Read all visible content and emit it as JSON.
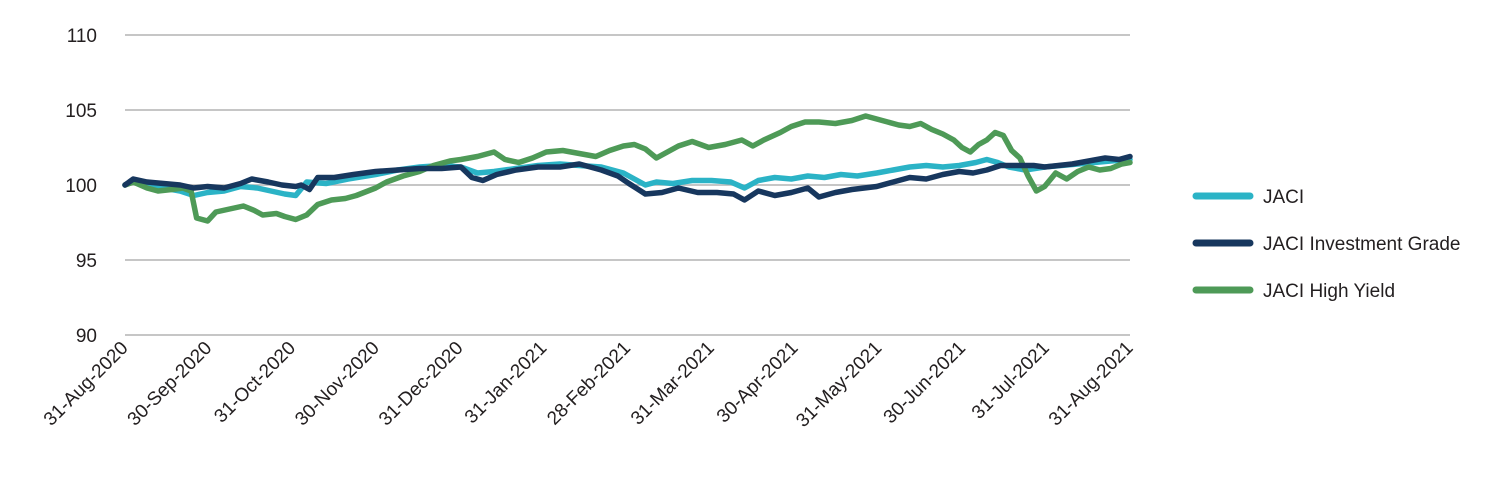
{
  "chart_data": {
    "type": "line",
    "title": "",
    "xlabel": "",
    "ylabel": "",
    "ylim": [
      90,
      110
    ],
    "yticks": [
      90,
      95,
      100,
      105,
      110
    ],
    "grid": "horizontal",
    "legend_position": "right",
    "x_tick_labels": [
      "31-Aug-2020",
      "30-Sep-2020",
      "31-Oct-2020",
      "30-Nov-2020",
      "31-Dec-2020",
      "31-Jan-2021",
      "28-Feb-2021",
      "31-Mar-2021",
      "30-Apr-2021",
      "31-May-2021",
      "30-Jun-2021",
      "31-Jul-2021",
      "31-Aug-2021"
    ],
    "series": [
      {
        "name": "JACI",
        "color": "#2bb3c6",
        "points": [
          [
            "2020-08-31",
            100.0
          ],
          [
            "2020-09-03",
            100.3
          ],
          [
            "2020-09-08",
            100.1
          ],
          [
            "2020-09-14",
            99.8
          ],
          [
            "2020-09-20",
            99.6
          ],
          [
            "2020-09-25",
            99.3
          ],
          [
            "2020-09-30",
            99.5
          ],
          [
            "2020-10-06",
            99.6
          ],
          [
            "2020-10-12",
            99.9
          ],
          [
            "2020-10-18",
            99.8
          ],
          [
            "2020-10-23",
            99.6
          ],
          [
            "2020-10-28",
            99.4
          ],
          [
            "2020-11-01",
            99.3
          ],
          [
            "2020-11-05",
            100.2
          ],
          [
            "2020-11-12",
            100.1
          ],
          [
            "2020-11-20",
            100.4
          ],
          [
            "2020-11-30",
            100.7
          ],
          [
            "2020-12-08",
            101.0
          ],
          [
            "2020-12-16",
            101.2
          ],
          [
            "2020-12-24",
            101.3
          ],
          [
            "2020-12-31",
            101.2
          ],
          [
            "2021-01-06",
            100.8
          ],
          [
            "2021-01-12",
            100.9
          ],
          [
            "2021-01-20",
            101.1
          ],
          [
            "2021-01-28",
            101.3
          ],
          [
            "2021-02-05",
            101.4
          ],
          [
            "2021-02-12",
            101.3
          ],
          [
            "2021-02-20",
            101.2
          ],
          [
            "2021-02-28",
            100.8
          ],
          [
            "2021-03-04",
            100.4
          ],
          [
            "2021-03-08",
            100.0
          ],
          [
            "2021-03-12",
            100.2
          ],
          [
            "2021-03-18",
            100.1
          ],
          [
            "2021-03-25",
            100.3
          ],
          [
            "2021-04-01",
            100.3
          ],
          [
            "2021-04-08",
            100.2
          ],
          [
            "2021-04-13",
            99.8
          ],
          [
            "2021-04-18",
            100.3
          ],
          [
            "2021-04-24",
            100.5
          ],
          [
            "2021-04-30",
            100.4
          ],
          [
            "2021-05-06",
            100.6
          ],
          [
            "2021-05-12",
            100.5
          ],
          [
            "2021-05-18",
            100.7
          ],
          [
            "2021-05-24",
            100.6
          ],
          [
            "2021-05-31",
            100.8
          ],
          [
            "2021-06-06",
            101.0
          ],
          [
            "2021-06-12",
            101.2
          ],
          [
            "2021-06-18",
            101.3
          ],
          [
            "2021-06-24",
            101.2
          ],
          [
            "2021-06-30",
            101.3
          ],
          [
            "2021-07-06",
            101.5
          ],
          [
            "2021-07-10",
            101.7
          ],
          [
            "2021-07-14",
            101.5
          ],
          [
            "2021-07-18",
            101.2
          ],
          [
            "2021-07-24",
            101.0
          ],
          [
            "2021-07-31",
            101.2
          ],
          [
            "2021-08-06",
            101.3
          ],
          [
            "2021-08-12",
            101.4
          ],
          [
            "2021-08-18",
            101.5
          ],
          [
            "2021-08-24",
            101.6
          ],
          [
            "2021-08-31",
            101.7
          ]
        ]
      },
      {
        "name": "JACI Investment Grade",
        "color": "#17375e",
        "points": [
          [
            "2020-08-31",
            100.0
          ],
          [
            "2020-09-03",
            100.4
          ],
          [
            "2020-09-08",
            100.2
          ],
          [
            "2020-09-14",
            100.1
          ],
          [
            "2020-09-20",
            100.0
          ],
          [
            "2020-09-25",
            99.8
          ],
          [
            "2020-09-30",
            99.9
          ],
          [
            "2020-10-06",
            99.8
          ],
          [
            "2020-10-12",
            100.1
          ],
          [
            "2020-10-16",
            100.4
          ],
          [
            "2020-10-22",
            100.2
          ],
          [
            "2020-10-27",
            100.0
          ],
          [
            "2020-11-01",
            99.9
          ],
          [
            "2020-11-03",
            100.0
          ],
          [
            "2020-11-06",
            99.7
          ],
          [
            "2020-11-09",
            100.5
          ],
          [
            "2020-11-15",
            100.5
          ],
          [
            "2020-11-22",
            100.7
          ],
          [
            "2020-11-30",
            100.9
          ],
          [
            "2020-12-08",
            101.0
          ],
          [
            "2020-12-16",
            101.1
          ],
          [
            "2020-12-24",
            101.1
          ],
          [
            "2020-12-31",
            101.2
          ],
          [
            "2021-01-04",
            100.5
          ],
          [
            "2021-01-08",
            100.3
          ],
          [
            "2021-01-13",
            100.7
          ],
          [
            "2021-01-20",
            101.0
          ],
          [
            "2021-01-28",
            101.2
          ],
          [
            "2021-02-05",
            101.2
          ],
          [
            "2021-02-12",
            101.4
          ],
          [
            "2021-02-20",
            101.0
          ],
          [
            "2021-02-26",
            100.6
          ],
          [
            "2021-03-02",
            100.1
          ],
          [
            "2021-03-08",
            99.4
          ],
          [
            "2021-03-14",
            99.5
          ],
          [
            "2021-03-20",
            99.8
          ],
          [
            "2021-03-27",
            99.5
          ],
          [
            "2021-04-03",
            99.5
          ],
          [
            "2021-04-09",
            99.4
          ],
          [
            "2021-04-13",
            99.0
          ],
          [
            "2021-04-18",
            99.6
          ],
          [
            "2021-04-24",
            99.3
          ],
          [
            "2021-04-30",
            99.5
          ],
          [
            "2021-05-06",
            99.8
          ],
          [
            "2021-05-10",
            99.2
          ],
          [
            "2021-05-16",
            99.5
          ],
          [
            "2021-05-22",
            99.7
          ],
          [
            "2021-05-31",
            99.9
          ],
          [
            "2021-06-06",
            100.2
          ],
          [
            "2021-06-12",
            100.5
          ],
          [
            "2021-06-18",
            100.4
          ],
          [
            "2021-06-24",
            100.7
          ],
          [
            "2021-06-30",
            100.9
          ],
          [
            "2021-07-05",
            100.8
          ],
          [
            "2021-07-10",
            101.0
          ],
          [
            "2021-07-15",
            101.3
          ],
          [
            "2021-07-21",
            101.3
          ],
          [
            "2021-07-27",
            101.3
          ],
          [
            "2021-07-31",
            101.2
          ],
          [
            "2021-08-05",
            101.3
          ],
          [
            "2021-08-10",
            101.4
          ],
          [
            "2021-08-16",
            101.6
          ],
          [
            "2021-08-22",
            101.8
          ],
          [
            "2021-08-27",
            101.7
          ],
          [
            "2021-08-31",
            101.9
          ]
        ]
      },
      {
        "name": "JACI High Yield",
        "color": "#4e9a57",
        "points": [
          [
            "2020-08-31",
            100.0
          ],
          [
            "2020-09-03",
            100.2
          ],
          [
            "2020-09-08",
            99.8
          ],
          [
            "2020-09-12",
            99.6
          ],
          [
            "2020-09-17",
            99.7
          ],
          [
            "2020-09-21",
            99.8
          ],
          [
            "2020-09-24",
            99.6
          ],
          [
            "2020-09-26",
            97.8
          ],
          [
            "2020-09-30",
            97.6
          ],
          [
            "2020-10-03",
            98.2
          ],
          [
            "2020-10-08",
            98.4
          ],
          [
            "2020-10-13",
            98.6
          ],
          [
            "2020-10-17",
            98.3
          ],
          [
            "2020-10-20",
            98.0
          ],
          [
            "2020-10-25",
            98.1
          ],
          [
            "2020-10-28",
            97.9
          ],
          [
            "2020-11-01",
            97.7
          ],
          [
            "2020-11-05",
            98.0
          ],
          [
            "2020-11-09",
            98.7
          ],
          [
            "2020-11-14",
            99.0
          ],
          [
            "2020-11-19",
            99.1
          ],
          [
            "2020-11-23",
            99.3
          ],
          [
            "2020-11-30",
            99.8
          ],
          [
            "2020-12-04",
            100.2
          ],
          [
            "2020-12-10",
            100.6
          ],
          [
            "2020-12-16",
            100.9
          ],
          [
            "2020-12-21",
            101.3
          ],
          [
            "2020-12-27",
            101.6
          ],
          [
            "2020-12-31",
            101.7
          ],
          [
            "2021-01-06",
            101.9
          ],
          [
            "2021-01-12",
            102.2
          ],
          [
            "2021-01-16",
            101.7
          ],
          [
            "2021-01-21",
            101.5
          ],
          [
            "2021-01-26",
            101.8
          ],
          [
            "2021-01-31",
            102.2
          ],
          [
            "2021-02-06",
            102.3
          ],
          [
            "2021-02-12",
            102.1
          ],
          [
            "2021-02-18",
            101.9
          ],
          [
            "2021-02-23",
            102.3
          ],
          [
            "2021-02-28",
            102.6
          ],
          [
            "2021-03-04",
            102.7
          ],
          [
            "2021-03-08",
            102.4
          ],
          [
            "2021-03-12",
            101.8
          ],
          [
            "2021-03-16",
            102.2
          ],
          [
            "2021-03-20",
            102.6
          ],
          [
            "2021-03-25",
            102.9
          ],
          [
            "2021-03-31",
            102.5
          ],
          [
            "2021-04-06",
            102.7
          ],
          [
            "2021-04-12",
            103.0
          ],
          [
            "2021-04-16",
            102.6
          ],
          [
            "2021-04-20",
            103.0
          ],
          [
            "2021-04-26",
            103.5
          ],
          [
            "2021-04-30",
            103.9
          ],
          [
            "2021-05-05",
            104.2
          ],
          [
            "2021-05-10",
            104.2
          ],
          [
            "2021-05-16",
            104.1
          ],
          [
            "2021-05-22",
            104.3
          ],
          [
            "2021-05-27",
            104.6
          ],
          [
            "2021-05-31",
            104.4
          ],
          [
            "2021-06-04",
            104.2
          ],
          [
            "2021-06-08",
            104.0
          ],
          [
            "2021-06-12",
            103.9
          ],
          [
            "2021-06-16",
            104.1
          ],
          [
            "2021-06-20",
            103.7
          ],
          [
            "2021-06-24",
            103.4
          ],
          [
            "2021-06-28",
            103.0
          ],
          [
            "2021-07-01",
            102.5
          ],
          [
            "2021-07-04",
            102.2
          ],
          [
            "2021-07-07",
            102.7
          ],
          [
            "2021-07-10",
            103.0
          ],
          [
            "2021-07-13",
            103.5
          ],
          [
            "2021-07-16",
            103.3
          ],
          [
            "2021-07-19",
            102.3
          ],
          [
            "2021-07-22",
            101.8
          ],
          [
            "2021-07-25",
            100.6
          ],
          [
            "2021-07-28",
            99.6
          ],
          [
            "2021-07-31",
            99.9
          ],
          [
            "2021-08-04",
            100.8
          ],
          [
            "2021-08-08",
            100.4
          ],
          [
            "2021-08-12",
            100.9
          ],
          [
            "2021-08-16",
            101.2
          ],
          [
            "2021-08-20",
            101.0
          ],
          [
            "2021-08-24",
            101.1
          ],
          [
            "2021-08-28",
            101.4
          ],
          [
            "2021-08-31",
            101.5
          ]
        ]
      }
    ]
  }
}
